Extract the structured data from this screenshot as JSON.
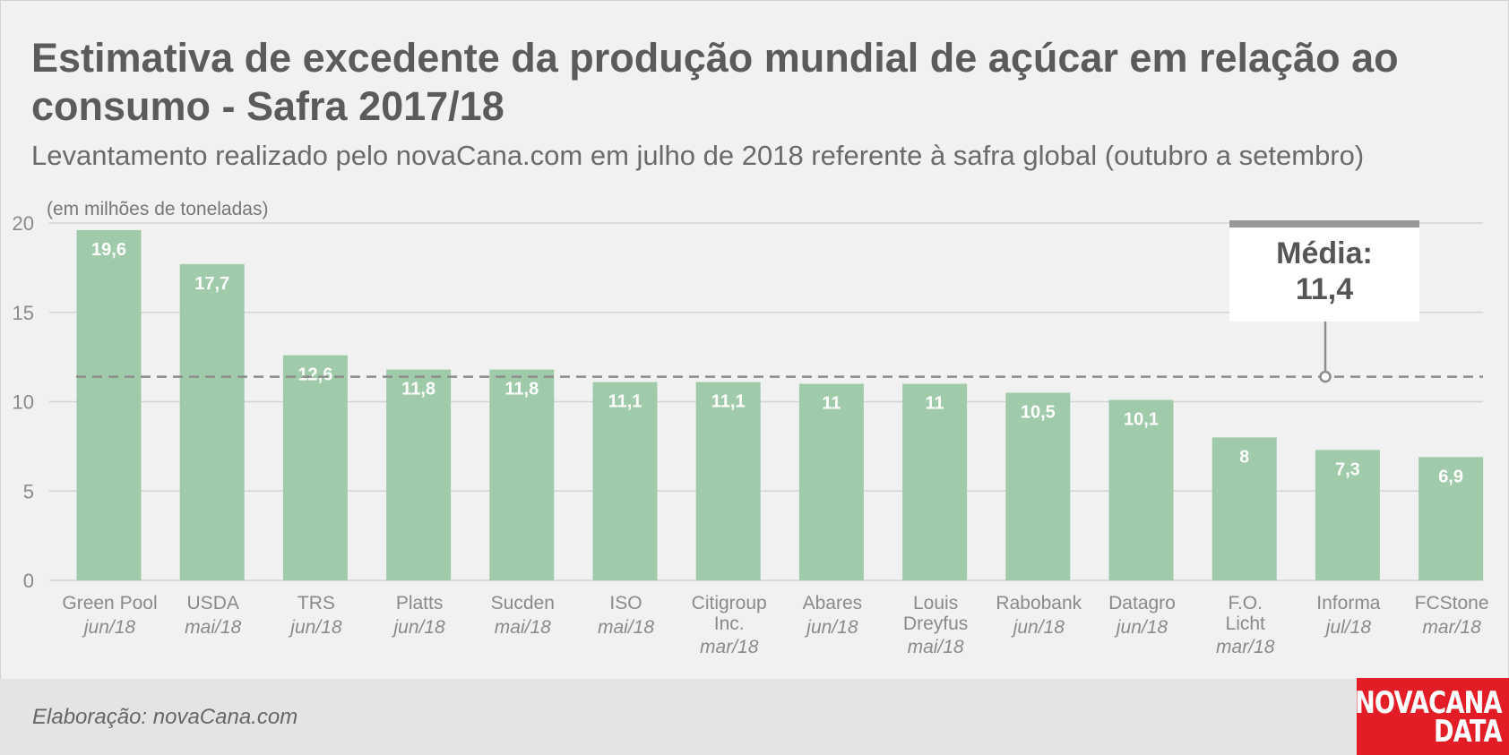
{
  "header": {
    "title": "Estimativa de excedente da produção mundial de açúcar em relação ao consumo - Safra 2017/18",
    "subtitle": "Levantamento realizado pelo novaCana.com em julho de 2018 referente à safra global (outubro a setembro)"
  },
  "chart_data": {
    "type": "bar",
    "unit_label": "(em milhões de toneladas)",
    "categories": [
      {
        "label": [
          "Green Pool"
        ],
        "date": "jun/18"
      },
      {
        "label": [
          "USDA"
        ],
        "date": "mai/18"
      },
      {
        "label": [
          "TRS"
        ],
        "date": "jun/18"
      },
      {
        "label": [
          "Platts"
        ],
        "date": "jun/18"
      },
      {
        "label": [
          "Sucden"
        ],
        "date": "mai/18"
      },
      {
        "label": [
          "ISO"
        ],
        "date": "mai/18"
      },
      {
        "label": [
          "Citigroup",
          "Inc."
        ],
        "date": "mar/18"
      },
      {
        "label": [
          "Abares"
        ],
        "date": "jun/18"
      },
      {
        "label": [
          "Louis",
          "Dreyfus"
        ],
        "date": "mai/18"
      },
      {
        "label": [
          "Rabobank"
        ],
        "date": "jun/18"
      },
      {
        "label": [
          "Datagro"
        ],
        "date": "jun/18"
      },
      {
        "label": [
          "F.O.",
          "Licht"
        ],
        "date": "mar/18"
      },
      {
        "label": [
          "Informa"
        ],
        "date": "jul/18"
      },
      {
        "label": [
          "FCStone"
        ],
        "date": "mar/18"
      }
    ],
    "values": [
      19.6,
      17.7,
      12.6,
      11.8,
      11.8,
      11.1,
      11.1,
      11,
      11,
      10.5,
      10.1,
      8,
      7.3,
      6.9
    ],
    "value_labels": [
      "19,6",
      "17,7",
      "12,6",
      "11,8",
      "11,8",
      "11,1",
      "11,1",
      "11",
      "11",
      "10,5",
      "10,1",
      "8",
      "7,3",
      "6,9"
    ],
    "yticks": [
      0,
      5,
      10,
      15,
      20
    ],
    "ylim": [
      0,
      20
    ],
    "grid": true,
    "average": {
      "value": 11.4,
      "label": "Média:",
      "value_label": "11,4"
    },
    "colors": {
      "bar": "#a0cbaa",
      "grid": "#d4d4d4",
      "average_line": "#8c8c8c",
      "axis_text": "#8a8a8a"
    }
  },
  "footer": {
    "credit": "Elaboração: novaCana.com",
    "logo_line1": "NOVACANA",
    "logo_line2": "DATA",
    "logo_color": "#e31d25"
  }
}
